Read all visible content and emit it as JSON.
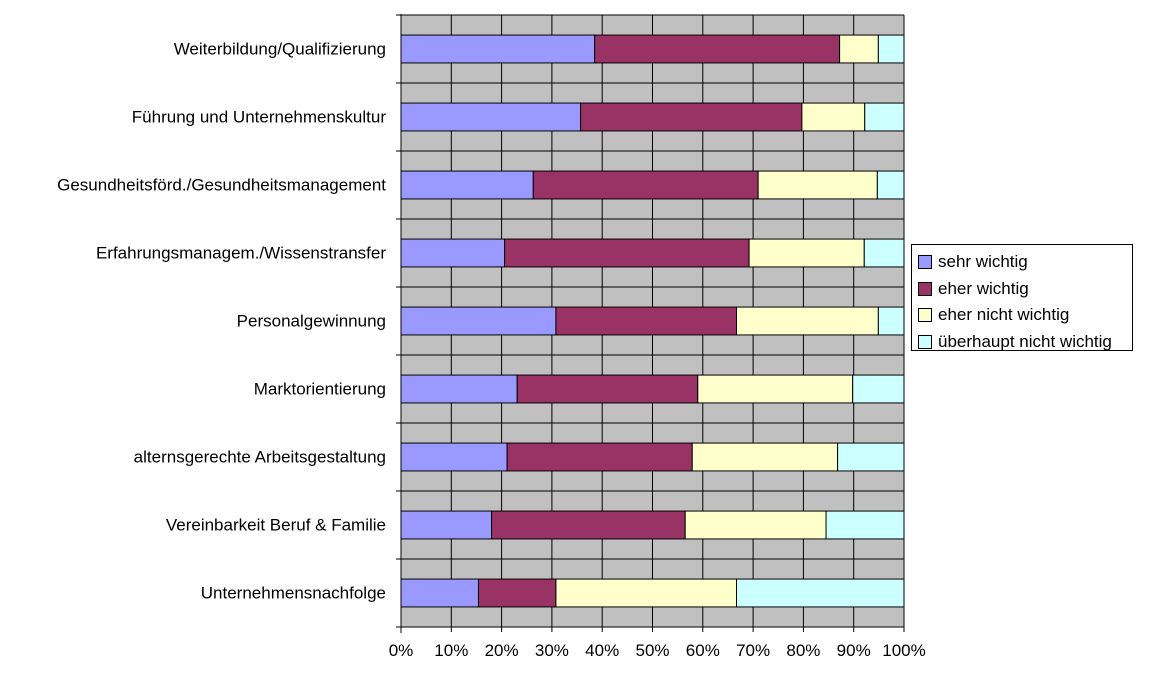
{
  "chart_data": {
    "type": "bar",
    "orientation": "horizontal",
    "stacked": "percent",
    "title": "",
    "xlabel": "",
    "ylabel": "",
    "xlim": [
      0,
      100
    ],
    "x_ticks": [
      "0%",
      "10%",
      "20%",
      "30%",
      "40%",
      "50%",
      "60%",
      "70%",
      "80%",
      "90%",
      "100%"
    ],
    "grid": true,
    "legend_position": "right",
    "plot_background": "#C0C0C0",
    "categories": [
      "Weiterbildung/Qualifizierung",
      "Führung und Unternehmenskultur",
      "Gesundheitsförd./Gesundheitsmanagement",
      "Erfahrungsmanagem./Wissenstransfer",
      "Personalgewinnung",
      "Marktorientierung",
      "alternsgerechte Arbeitsgestaltung",
      "Vereinbarkeit Beruf & Familie",
      "Unternehmensnachfolge"
    ],
    "series": [
      {
        "name": "sehr wichtig",
        "color": "#9999FF",
        "values": [
          38.5,
          35.7,
          26.3,
          20.6,
          30.8,
          23.1,
          21.1,
          18.0,
          15.4
        ]
      },
      {
        "name": "eher wichtig",
        "color": "#993366",
        "values": [
          48.7,
          44.0,
          44.7,
          48.6,
          35.9,
          35.9,
          36.8,
          38.5,
          15.4
        ]
      },
      {
        "name": "eher nicht wichtig",
        "color": "#FFFFCC",
        "values": [
          7.7,
          12.5,
          23.7,
          22.9,
          28.2,
          30.8,
          28.9,
          28.0,
          35.9
        ]
      },
      {
        "name": "überhaupt nicht wichtig",
        "color": "#CCFFFF",
        "values": [
          5.1,
          7.8,
          5.3,
          7.9,
          5.1,
          10.2,
          13.2,
          15.5,
          33.3
        ]
      }
    ]
  }
}
